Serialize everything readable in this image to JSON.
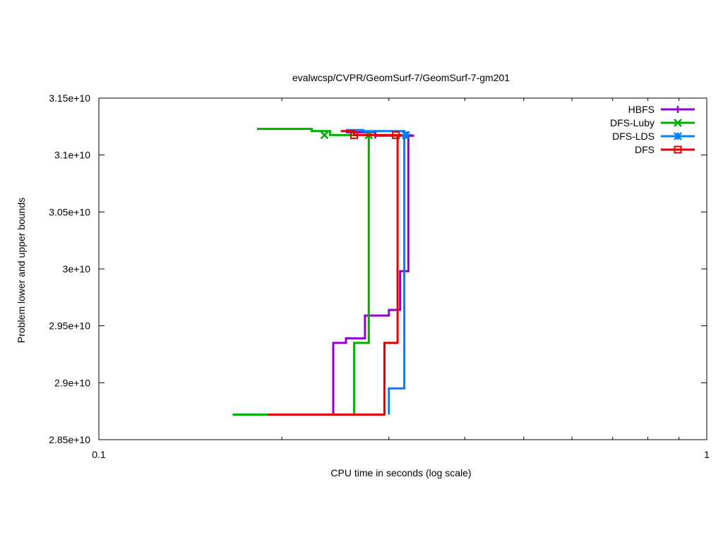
{
  "chart_data": {
    "type": "line",
    "title": "evalwcsp/CVPR/GeomSurf-7/GeomSurf-7-gm201",
    "xlabel": "CPU time in seconds (log scale)",
    "ylabel": "Problem lower and upper bounds",
    "x_scale": "log",
    "xlim": [
      0.1,
      1
    ],
    "ylim": [
      28500000000,
      31500000000
    ],
    "x_ticks": [
      {
        "value": 0.1,
        "label": "0.1"
      },
      {
        "value": 1,
        "label": "1"
      }
    ],
    "y_ticks": [
      {
        "value": 28500000000,
        "label": "2.85e+10"
      },
      {
        "value": 29000000000,
        "label": "2.9e+10"
      },
      {
        "value": 29500000000,
        "label": "2.95e+10"
      },
      {
        "value": 30000000000,
        "label": "3e+10"
      },
      {
        "value": 30500000000,
        "label": "3.05e+10"
      },
      {
        "value": 31000000000,
        "label": "3.1e+10"
      },
      {
        "value": 31500000000,
        "label": "3.15e+10"
      }
    ],
    "grid": false,
    "legend_position": "top-right",
    "series": [
      {
        "name": "HBFS",
        "color": "#9400d3",
        "marker": "plus",
        "lower": [
          [
            0.173,
            28720000000
          ],
          [
            0.243,
            28720000000
          ],
          [
            0.243,
            29350000000
          ],
          [
            0.255,
            29350000000
          ],
          [
            0.255,
            29390000000
          ],
          [
            0.274,
            29390000000
          ],
          [
            0.274,
            29590000000
          ],
          [
            0.3,
            29590000000
          ],
          [
            0.3,
            29640000000
          ],
          [
            0.313,
            29640000000
          ],
          [
            0.313,
            29980000000
          ],
          [
            0.323,
            29980000000
          ],
          [
            0.323,
            31170000000
          ],
          [
            0.33,
            31170000000
          ]
        ],
        "upper": [
          [
            0.255,
            31200000000
          ],
          [
            0.285,
            31200000000
          ],
          [
            0.285,
            31170000000
          ],
          [
            0.33,
            31170000000
          ]
        ],
        "markers": [
          [
            0.285,
            31175000000
          ],
          [
            0.322,
            31175000000
          ]
        ]
      },
      {
        "name": "DFS-Luby",
        "color": "#00b000",
        "marker": "cross",
        "lower": [
          [
            0.166,
            28720000000
          ],
          [
            0.263,
            28720000000
          ],
          [
            0.263,
            29350000000
          ],
          [
            0.278,
            29350000000
          ],
          [
            0.278,
            31175000000
          ]
        ],
        "upper": [
          [
            0.182,
            31230000000
          ],
          [
            0.224,
            31230000000
          ],
          [
            0.224,
            31210000000
          ],
          [
            0.24,
            31210000000
          ],
          [
            0.24,
            31175000000
          ],
          [
            0.278,
            31175000000
          ]
        ],
        "markers": [
          [
            0.235,
            31175000000
          ],
          [
            0.278,
            31175000000
          ]
        ]
      },
      {
        "name": "DFS-LDS",
        "color": "#0080ff",
        "marker": "star",
        "lower": [
          [
            0.3,
            28720000000
          ],
          [
            0.3,
            28950000000
          ],
          [
            0.318,
            28950000000
          ],
          [
            0.318,
            31175000000
          ]
        ],
        "upper": [
          [
            0.255,
            31220000000
          ],
          [
            0.272,
            31220000000
          ],
          [
            0.272,
            31210000000
          ],
          [
            0.318,
            31210000000
          ],
          [
            0.318,
            31175000000
          ]
        ],
        "markers": [
          [
            0.32,
            31175000000
          ]
        ]
      },
      {
        "name": "DFS",
        "color": "#e00000",
        "marker": "square",
        "lower": [
          [
            0.19,
            28720000000
          ],
          [
            0.295,
            28720000000
          ],
          [
            0.295,
            29350000000
          ],
          [
            0.31,
            29350000000
          ],
          [
            0.31,
            31175000000
          ]
        ],
        "upper": [
          [
            0.25,
            31210000000
          ],
          [
            0.263,
            31210000000
          ],
          [
            0.263,
            31175000000
          ],
          [
            0.315,
            31175000000
          ]
        ],
        "markers": [
          [
            0.263,
            31175000000
          ],
          [
            0.308,
            31175000000
          ]
        ]
      }
    ]
  }
}
